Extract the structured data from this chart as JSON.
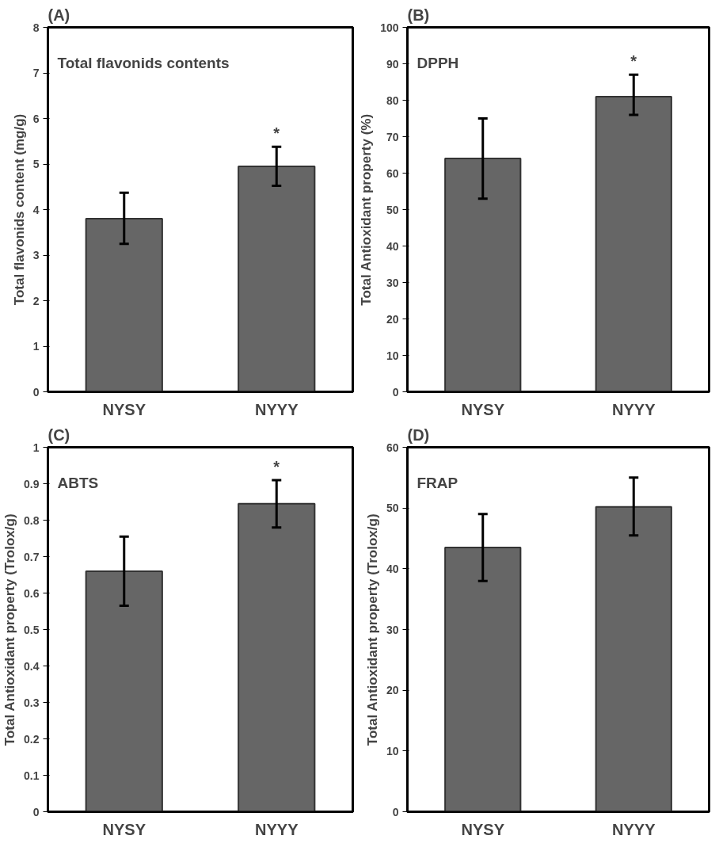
{
  "chart_data": [
    {
      "type": "bar",
      "title": "(A)",
      "ylabel": "Total flavonids content (mg/g)",
      "categories": [
        "NYSY",
        "NYYY"
      ],
      "values": [
        3.8,
        4.95
      ],
      "errors": [
        [
          3.25,
          4.37
        ],
        [
          4.52,
          5.38
        ]
      ],
      "color": "#666666",
      "ylim": [
        0,
        8
      ],
      "yticks": [
        0,
        1,
        2,
        3,
        4,
        5,
        6,
        7,
        8
      ],
      "grid": false,
      "annotations": [
        "Total flavonids contents",
        {
          "text": "*",
          "x": "NYYY",
          "y": 5.38
        }
      ]
    },
    {
      "type": "bar",
      "title": "(B)",
      "ylabel": "Total Antioxidant property (%)",
      "categories": [
        "NYSY",
        "NYYY"
      ],
      "values": [
        64,
        81
      ],
      "errors": [
        [
          53,
          75
        ],
        [
          76,
          87
        ]
      ],
      "color": "#666666",
      "ylim": [
        0,
        100
      ],
      "yticks": [
        0,
        10,
        20,
        30,
        40,
        50,
        60,
        70,
        80,
        90,
        100
      ],
      "grid": false,
      "annotations": [
        "DPPH",
        {
          "text": "*",
          "x": "NYYY",
          "y": 87
        }
      ]
    },
    {
      "type": "bar",
      "title": "(C)",
      "ylabel": "Total Antioxidant property (Trolox/g)",
      "categories": [
        "NYSY",
        "NYYY"
      ],
      "values": [
        0.66,
        0.845
      ],
      "errors": [
        [
          0.565,
          0.755
        ],
        [
          0.78,
          0.91
        ]
      ],
      "color": "#666666",
      "ylim": [
        0,
        1
      ],
      "yticks": [
        0,
        0.1,
        0.2,
        0.3,
        0.4,
        0.5,
        0.6,
        0.7,
        0.8,
        0.9,
        1
      ],
      "grid": false,
      "annotations": [
        "ABTS",
        {
          "text": "*",
          "x": "NYYY",
          "y": 0.91
        }
      ]
    },
    {
      "type": "bar",
      "title": "(D)",
      "ylabel": "Total Antioxidant property (Trolox/g)",
      "categories": [
        "NYSY",
        "NYYY"
      ],
      "values": [
        43.5,
        50.2
      ],
      "errors": [
        [
          38,
          49
        ],
        [
          45.5,
          55
        ]
      ],
      "color": "#666666",
      "ylim": [
        0,
        60
      ],
      "yticks": [
        0,
        10,
        20,
        30,
        40,
        50,
        60
      ],
      "grid": false,
      "annotations": [
        "FRAP"
      ]
    }
  ]
}
